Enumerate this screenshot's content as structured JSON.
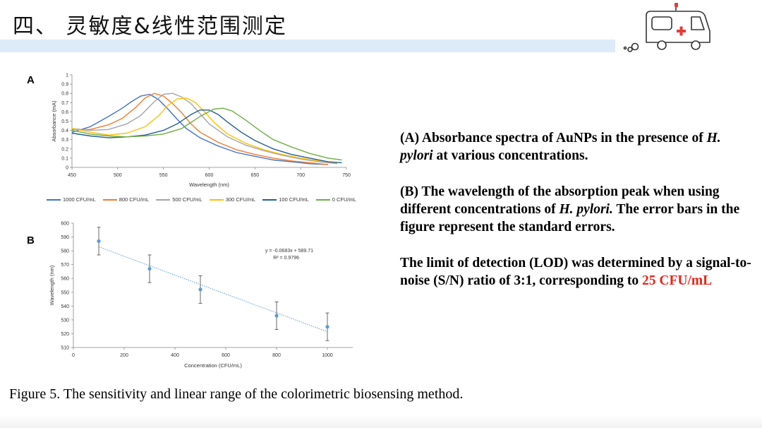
{
  "slide": {
    "title": "四、 灵敏度&线性范围测定",
    "caption": "Figure 5. The sensitivity and linear range of the colorimetric biosensing method."
  },
  "description": {
    "a_prefix": "(A) Absorbance spectra of AuNPs in the presence of ",
    "a_italic": "H. pylori",
    "a_suffix": " at various concentrations.",
    "b_prefix": "(B) The wavelength of the absorption peak when using different concentrations of ",
    "b_italic": "H. pylori.",
    "b_suffix": " The error bars in the figure represent the standard errors.",
    "lod_prefix": "The limit of detection (LOD) was determined by a signal-to-noise (S/N) ratio of 3:1, corresponding to ",
    "lod_value": "25 CFU/mL"
  },
  "colors": {
    "accent_red": "#e8251a",
    "title_bar": "#dcebf7"
  },
  "chart_data": [
    {
      "panel": "A",
      "type": "line",
      "xlabel": "Wavelength (nm)",
      "ylabel": "Absorbance (mA)",
      "xlim": [
        450,
        750
      ],
      "ylim": [
        0,
        1
      ],
      "xticks": [
        450,
        500,
        550,
        600,
        650,
        700,
        750
      ],
      "yticks": [
        0,
        0.1,
        0.2,
        0.3,
        0.4,
        0.5,
        0.6,
        0.7,
        0.8,
        0.9,
        1
      ],
      "legend_position": "bottom",
      "series": [
        {
          "name": "1000 CFU/mL",
          "color": "#4472c4",
          "x": [
            450,
            470,
            490,
            505,
            515,
            525,
            535,
            545,
            555,
            565,
            575,
            590,
            610,
            630,
            650,
            670,
            690,
            710,
            730
          ],
          "y": [
            0.38,
            0.44,
            0.55,
            0.64,
            0.71,
            0.77,
            0.79,
            0.73,
            0.63,
            0.52,
            0.42,
            0.32,
            0.23,
            0.16,
            0.12,
            0.08,
            0.06,
            0.04,
            0.03
          ]
        },
        {
          "name": "800 CFU/mL",
          "color": "#ed7d31",
          "x": [
            450,
            470,
            490,
            505,
            520,
            530,
            540,
            550,
            560,
            570,
            580,
            590,
            610,
            630,
            650,
            670,
            690,
            710,
            730
          ],
          "y": [
            0.41,
            0.41,
            0.46,
            0.53,
            0.65,
            0.75,
            0.8,
            0.77,
            0.69,
            0.59,
            0.47,
            0.38,
            0.27,
            0.19,
            0.14,
            0.1,
            0.07,
            0.05,
            0.03
          ]
        },
        {
          "name": "500 CFU/mL",
          "color": "#a5a5a5",
          "x": [
            450,
            470,
            490,
            510,
            525,
            540,
            550,
            560,
            570,
            580,
            590,
            600,
            620,
            640,
            660,
            680,
            700,
            720,
            740
          ],
          "y": [
            0.42,
            0.4,
            0.41,
            0.47,
            0.56,
            0.71,
            0.79,
            0.8,
            0.76,
            0.69,
            0.58,
            0.47,
            0.33,
            0.24,
            0.18,
            0.13,
            0.09,
            0.06,
            0.04
          ]
        },
        {
          "name": "300 CFU/mL",
          "color": "#ffc000",
          "x": [
            450,
            470,
            490,
            510,
            530,
            545,
            555,
            565,
            575,
            585,
            595,
            605,
            620,
            640,
            660,
            680,
            700,
            720,
            740
          ],
          "y": [
            0.42,
            0.38,
            0.35,
            0.37,
            0.44,
            0.56,
            0.67,
            0.74,
            0.75,
            0.7,
            0.6,
            0.49,
            0.36,
            0.26,
            0.19,
            0.14,
            0.1,
            0.07,
            0.05
          ]
        },
        {
          "name": "100 CFU/mL",
          "color": "#255e91",
          "x": [
            450,
            470,
            490,
            510,
            530,
            550,
            565,
            580,
            590,
            600,
            610,
            620,
            635,
            650,
            670,
            690,
            710,
            730,
            745
          ],
          "y": [
            0.37,
            0.34,
            0.32,
            0.33,
            0.35,
            0.4,
            0.47,
            0.57,
            0.62,
            0.62,
            0.57,
            0.49,
            0.38,
            0.29,
            0.2,
            0.14,
            0.1,
            0.06,
            0.05
          ]
        },
        {
          "name": "0 CFU/mL",
          "color": "#70ad47",
          "x": [
            450,
            470,
            490,
            510,
            530,
            550,
            570,
            590,
            605,
            615,
            625,
            640,
            655,
            670,
            690,
            710,
            730,
            745
          ],
          "y": [
            0.4,
            0.36,
            0.34,
            0.33,
            0.34,
            0.36,
            0.42,
            0.55,
            0.63,
            0.64,
            0.61,
            0.51,
            0.4,
            0.3,
            0.22,
            0.15,
            0.1,
            0.08
          ]
        }
      ]
    },
    {
      "panel": "B",
      "type": "scatter",
      "xlabel": "Concentration (CFU/mL)",
      "ylabel": "Wavelength (nm)",
      "xlim": [
        0,
        1100
      ],
      "ylim": [
        510,
        600
      ],
      "xticks": [
        0,
        200,
        400,
        600,
        800,
        1000
      ],
      "yticks": [
        510,
        520,
        530,
        540,
        550,
        560,
        570,
        580,
        590,
        600
      ],
      "color": "#5b9bd5",
      "points": [
        {
          "x": 100,
          "y": 587,
          "err": 10
        },
        {
          "x": 300,
          "y": 567,
          "err": 10
        },
        {
          "x": 500,
          "y": 552,
          "err": 10
        },
        {
          "x": 800,
          "y": 533,
          "err": 10
        },
        {
          "x": 1000,
          "y": 525,
          "err": 10
        }
      ],
      "trendline": {
        "slope": -0.0683,
        "intercept": 589.71,
        "x_range": [
          100,
          1000
        ]
      },
      "equation": "y = -0.0683x + 589.71",
      "r_squared": "R² = 0.9796"
    }
  ]
}
